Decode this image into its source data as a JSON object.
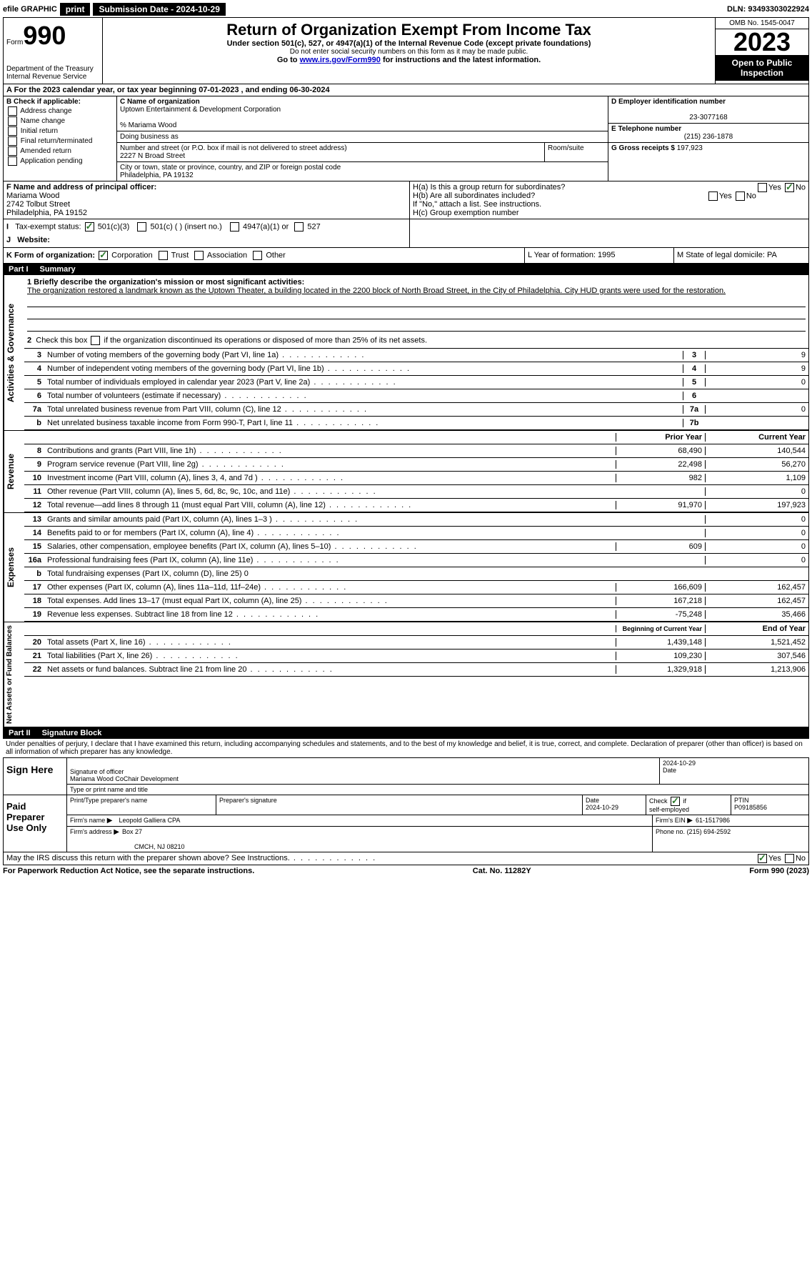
{
  "topbar": {
    "efile": "efile GRAPHIC",
    "print": "print",
    "subdate_lbl": "Submission Date - 2024-10-29",
    "dln": "DLN: 93493303022924"
  },
  "header": {
    "form": "Form",
    "form_no": "990",
    "title": "Return of Organization Exempt From Income Tax",
    "sub1": "Under section 501(c), 527, or 4947(a)(1) of the Internal Revenue Code (except private foundations)",
    "sub2": "Do not enter social security numbers on this form as it may be made public.",
    "sub3": "Go to ",
    "sub3_link": "www.irs.gov/Form990",
    "sub3_tail": " for instructions and the latest information.",
    "dept": "Department of the Treasury",
    "irs": "Internal Revenue Service",
    "omb": "OMB No. 1545-0047",
    "year": "2023",
    "open": "Open to Public Inspection"
  },
  "row_a": "A  For the 2023 calendar year, or tax year beginning 07-01-2023    , and ending 06-30-2024",
  "box_b": {
    "title": "B Check if applicable:",
    "items": [
      "Address change",
      "Name change",
      "Initial return",
      "Final return/terminated",
      "Amended return",
      "Application pending"
    ]
  },
  "box_c": {
    "lbl_name": "C Name of organization",
    "org": "Uptown Entertainment & Development Corporation",
    "care": "% Mariama Wood",
    "dba_lbl": "Doing business as",
    "addr_lbl": "Number and street (or P.O. box if mail is not delivered to street address)",
    "addr": "2227 N Broad Street",
    "room_lbl": "Room/suite",
    "city_lbl": "City or town, state or province, country, and ZIP or foreign postal code",
    "city": "Philadelphia, PA  19132"
  },
  "box_d": {
    "lbl": "D Employer identification number",
    "val": "23-3077168"
  },
  "box_e": {
    "lbl": "E Telephone number",
    "val": "(215) 236-1878"
  },
  "box_g": {
    "lbl": "G Gross receipts $ ",
    "val": "197,923"
  },
  "box_f": {
    "lbl": "F  Name and address of principal officer:",
    "name": "Mariama Wood",
    "addr1": "2742 Tolbut Street",
    "addr2": "Philadelphia, PA  19152"
  },
  "box_h": {
    "a": "H(a)  Is this a group return for subordinates?",
    "b": "H(b)  Are all subordinates included?",
    "b_note": "If \"No,\" attach a list. See instructions.",
    "c": "H(c)  Group exemption number",
    "yes": "Yes",
    "no": "No"
  },
  "row_i": {
    "lbl": "Tax-exempt status:",
    "o1": "501(c)(3)",
    "o2": "501(c) (  ) (insert no.)",
    "o3": "4947(a)(1) or",
    "o4": "527"
  },
  "row_j": {
    "lbl": "Website:",
    "val": ""
  },
  "row_k": {
    "lbl": "K Form of organization:",
    "o1": "Corporation",
    "o2": "Trust",
    "o3": "Association",
    "o4": "Other",
    "l": "L Year of formation: 1995",
    "m": "M State of legal domicile: PA"
  },
  "part1": {
    "pt": "Part I",
    "title": "Summary"
  },
  "mission": {
    "q1": "1  Briefly describe the organization's mission or most significant activities:",
    "text": "The organization restored a landmark known as the Uptown Theater, a building located in the 2200 block of North Broad Street, in the City of Philadelphia. City HUD grants were used for the restoration.",
    "q2": "2   Check this box  if the organization discontinued its operations or disposed of more than 25% of its net assets."
  },
  "tabs": {
    "ag": "Activities & Governance",
    "rev": "Revenue",
    "exp": "Expenses",
    "na": "Net Assets or Fund Balances"
  },
  "lines_ag": [
    {
      "n": "3",
      "d": "Number of voting members of the governing body (Part VI, line 1a)",
      "box": "3",
      "v": "9"
    },
    {
      "n": "4",
      "d": "Number of independent voting members of the governing body (Part VI, line 1b)",
      "box": "4",
      "v": "9"
    },
    {
      "n": "5",
      "d": "Total number of individuals employed in calendar year 2023 (Part V, line 2a)",
      "box": "5",
      "v": "0"
    },
    {
      "n": "6",
      "d": "Total number of volunteers (estimate if necessary)",
      "box": "6",
      "v": ""
    },
    {
      "n": "7a",
      "d": "Total unrelated business revenue from Part VIII, column (C), line 12",
      "box": "7a",
      "v": "0"
    },
    {
      "n": "b",
      "d": "Net unrelated business taxable income from Form 990-T, Part I, line 11",
      "box": "7b",
      "v": ""
    }
  ],
  "col_hdr": {
    "prior": "Prior Year",
    "current": "Current Year",
    "begin": "Beginning of Current Year",
    "end": "End of Year"
  },
  "lines_rev": [
    {
      "n": "8",
      "d": "Contributions and grants (Part VIII, line 1h)",
      "p": "68,490",
      "c": "140,544"
    },
    {
      "n": "9",
      "d": "Program service revenue (Part VIII, line 2g)",
      "p": "22,498",
      "c": "56,270"
    },
    {
      "n": "10",
      "d": "Investment income (Part VIII, column (A), lines 3, 4, and 7d )",
      "p": "982",
      "c": "1,109"
    },
    {
      "n": "11",
      "d": "Other revenue (Part VIII, column (A), lines 5, 6d, 8c, 9c, 10c, and 11e)",
      "p": "",
      "c": "0"
    },
    {
      "n": "12",
      "d": "Total revenue—add lines 8 through 11 (must equal Part VIII, column (A), line 12)",
      "p": "91,970",
      "c": "197,923"
    }
  ],
  "lines_exp": [
    {
      "n": "13",
      "d": "Grants and similar amounts paid (Part IX, column (A), lines 1–3 )",
      "p": "",
      "c": "0"
    },
    {
      "n": "14",
      "d": "Benefits paid to or for members (Part IX, column (A), line 4)",
      "p": "",
      "c": "0"
    },
    {
      "n": "15",
      "d": "Salaries, other compensation, employee benefits (Part IX, column (A), lines 5–10)",
      "p": "609",
      "c": "0"
    },
    {
      "n": "16a",
      "d": "Professional fundraising fees (Part IX, column (A), line 11e)",
      "p": "",
      "c": "0"
    },
    {
      "n": "b",
      "d": "Total fundraising expenses (Part IX, column (D), line 25) 0",
      "shade": true
    },
    {
      "n": "17",
      "d": "Other expenses (Part IX, column (A), lines 11a–11d, 11f–24e)",
      "p": "166,609",
      "c": "162,457"
    },
    {
      "n": "18",
      "d": "Total expenses. Add lines 13–17 (must equal Part IX, column (A), line 25)",
      "p": "167,218",
      "c": "162,457"
    },
    {
      "n": "19",
      "d": "Revenue less expenses. Subtract line 18 from line 12",
      "p": "-75,248",
      "c": "35,466"
    }
  ],
  "lines_na": [
    {
      "n": "20",
      "d": "Total assets (Part X, line 16)",
      "p": "1,439,148",
      "c": "1,521,452"
    },
    {
      "n": "21",
      "d": "Total liabilities (Part X, line 26)",
      "p": "109,230",
      "c": "307,546"
    },
    {
      "n": "22",
      "d": "Net assets or fund balances. Subtract line 21 from line 20",
      "p": "1,329,918",
      "c": "1,213,906"
    }
  ],
  "part2": {
    "pt": "Part II",
    "title": "Signature Block"
  },
  "penalty": "Under penalties of perjury, I declare that I have examined this return, including accompanying schedules and statements, and to the best of my knowledge and belief, it is true, correct, and complete. Declaration of preparer (other than officer) is based on all information of which preparer has any knowledge.",
  "sign": {
    "here": "Sign Here",
    "sig_officer": "Signature of officer",
    "name": "Mariama Wood CoChair Development",
    "type_lbl": "Type or print name and title",
    "date": "2024-10-29"
  },
  "paid": {
    "lbl": "Paid Preparer Use Only",
    "h1": "Print/Type preparer's name",
    "h2": "Preparer's signature",
    "h3": "Date",
    "date": "2024-10-29",
    "h4": "Check  if self-employed",
    "h5": "PTIN",
    "ptin": "P09185856",
    "firm_lbl": "Firm's name",
    "firm": "Leopold Galliera CPA",
    "ein_lbl": "Firm's EIN",
    "ein": "61-1517986",
    "addr_lbl": "Firm's address",
    "addr": "Box 27",
    "city": "CMCH, NJ  08210",
    "phone_lbl": "Phone no.",
    "phone": "(215) 694-2592"
  },
  "discuss": "May the IRS discuss this return with the preparer shown above? See Instructions.",
  "footer": {
    "left": "For Paperwork Reduction Act Notice, see the separate instructions.",
    "mid": "Cat. No. 11282Y",
    "right": "Form 990 (2023)"
  }
}
